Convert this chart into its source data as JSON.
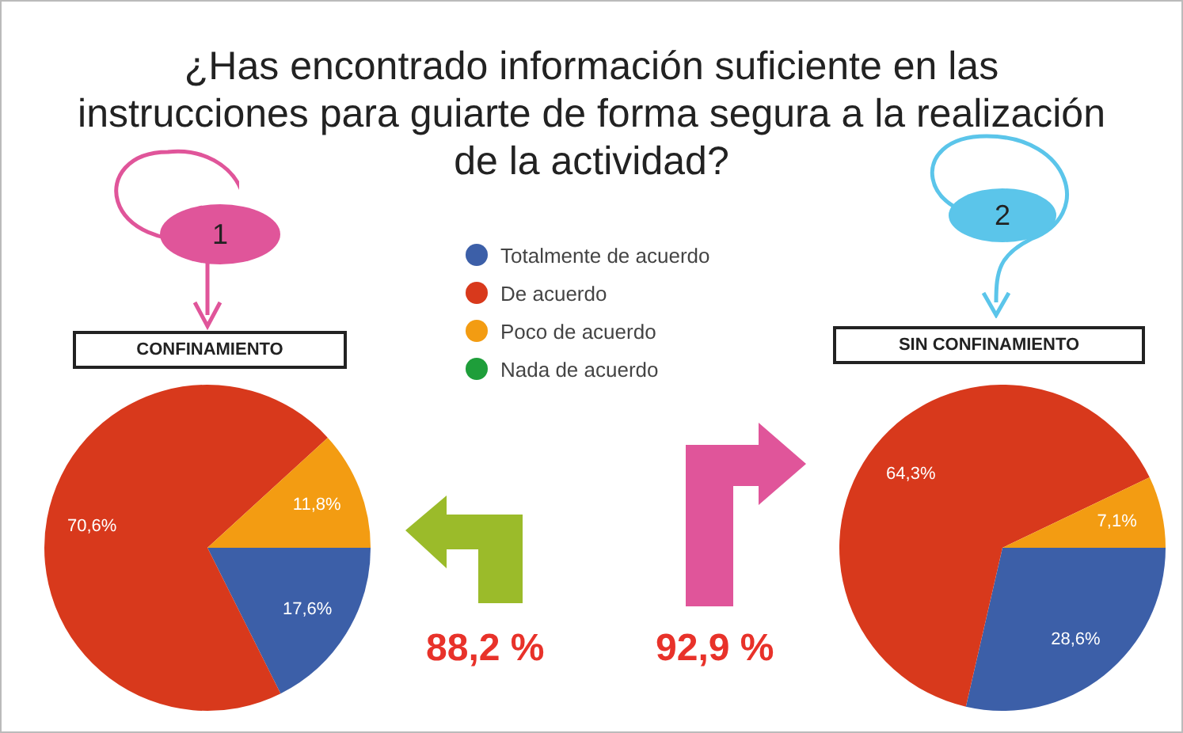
{
  "chart_data": [
    {
      "type": "pie",
      "title": "¿Has encontrado información suficiente en las instrucciones para guiarte de forma segura a la realización de la actividad?",
      "subtitle": "CONFINAMIENTO",
      "categories": [
        "Totalmente de acuerdo",
        "De acuerdo",
        "Poco de acuerdo",
        "Nada de acuerdo"
      ],
      "values": [
        17.6,
        70.6,
        11.8,
        0
      ],
      "colors": [
        "#3c5fa8",
        "#d8391c",
        "#f39c12",
        "#1e9e3a"
      ],
      "value_labels": [
        "17,6%",
        "70,6%",
        "11,8%",
        null
      ],
      "legend": "top right",
      "annotations": [
        "1",
        "88,2 %"
      ]
    },
    {
      "type": "pie",
      "subtitle": "SIN CONFINAMIENTO",
      "categories": [
        null,
        null,
        null,
        null
      ],
      "values": [
        28.6,
        64.3,
        7.1,
        0
      ],
      "colors": [
        "#3c5fa8",
        "#d8391c",
        "#f39c12",
        "#1e9e3a"
      ],
      "value_labels": [
        "28,6%",
        "64,3%",
        "7,1%",
        null
      ],
      "annotations": [
        "2",
        "92,9 %"
      ]
    }
  ]
}
